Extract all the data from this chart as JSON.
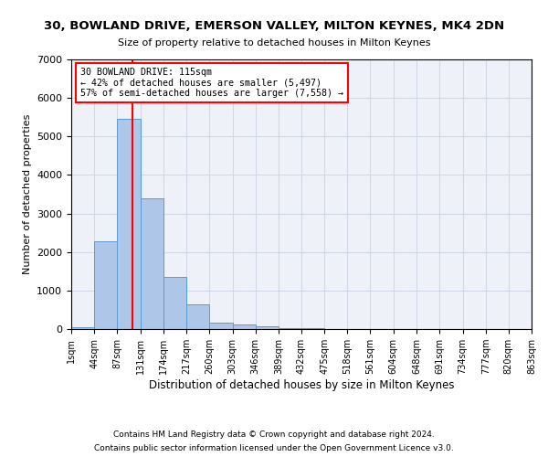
{
  "title": "30, BOWLAND DRIVE, EMERSON VALLEY, MILTON KEYNES, MK4 2DN",
  "subtitle": "Size of property relative to detached houses in Milton Keynes",
  "xlabel": "Distribution of detached houses by size in Milton Keynes",
  "ylabel": "Number of detached properties",
  "bin_edges": [
    1,
    44,
    87,
    131,
    174,
    217,
    260,
    303,
    346,
    389,
    432,
    475,
    518,
    561,
    604,
    648,
    691,
    734,
    777,
    820,
    863
  ],
  "bar_heights": [
    50,
    2280,
    5450,
    3400,
    1350,
    650,
    175,
    120,
    75,
    30,
    15,
    8,
    5,
    3,
    2,
    1,
    1,
    0,
    0,
    0
  ],
  "bar_color": "#aec6e8",
  "bar_edge_color": "#5b9bd5",
  "grid_color": "#d0d8e8",
  "background_color": "#eef2f8",
  "property_line_x": 115,
  "property_line_color": "red",
  "annotation_text": "30 BOWLAND DRIVE: 115sqm\n← 42% of detached houses are smaller (5,497)\n57% of semi-detached houses are larger (7,558) →",
  "annotation_box_color": "white",
  "annotation_box_edge": "red",
  "ylim": [
    0,
    7000
  ],
  "yticks": [
    0,
    1000,
    2000,
    3000,
    4000,
    5000,
    6000,
    7000
  ],
  "footer_line1": "Contains HM Land Registry data © Crown copyright and database right 2024.",
  "footer_line2": "Contains public sector information licensed under the Open Government Licence v3.0."
}
